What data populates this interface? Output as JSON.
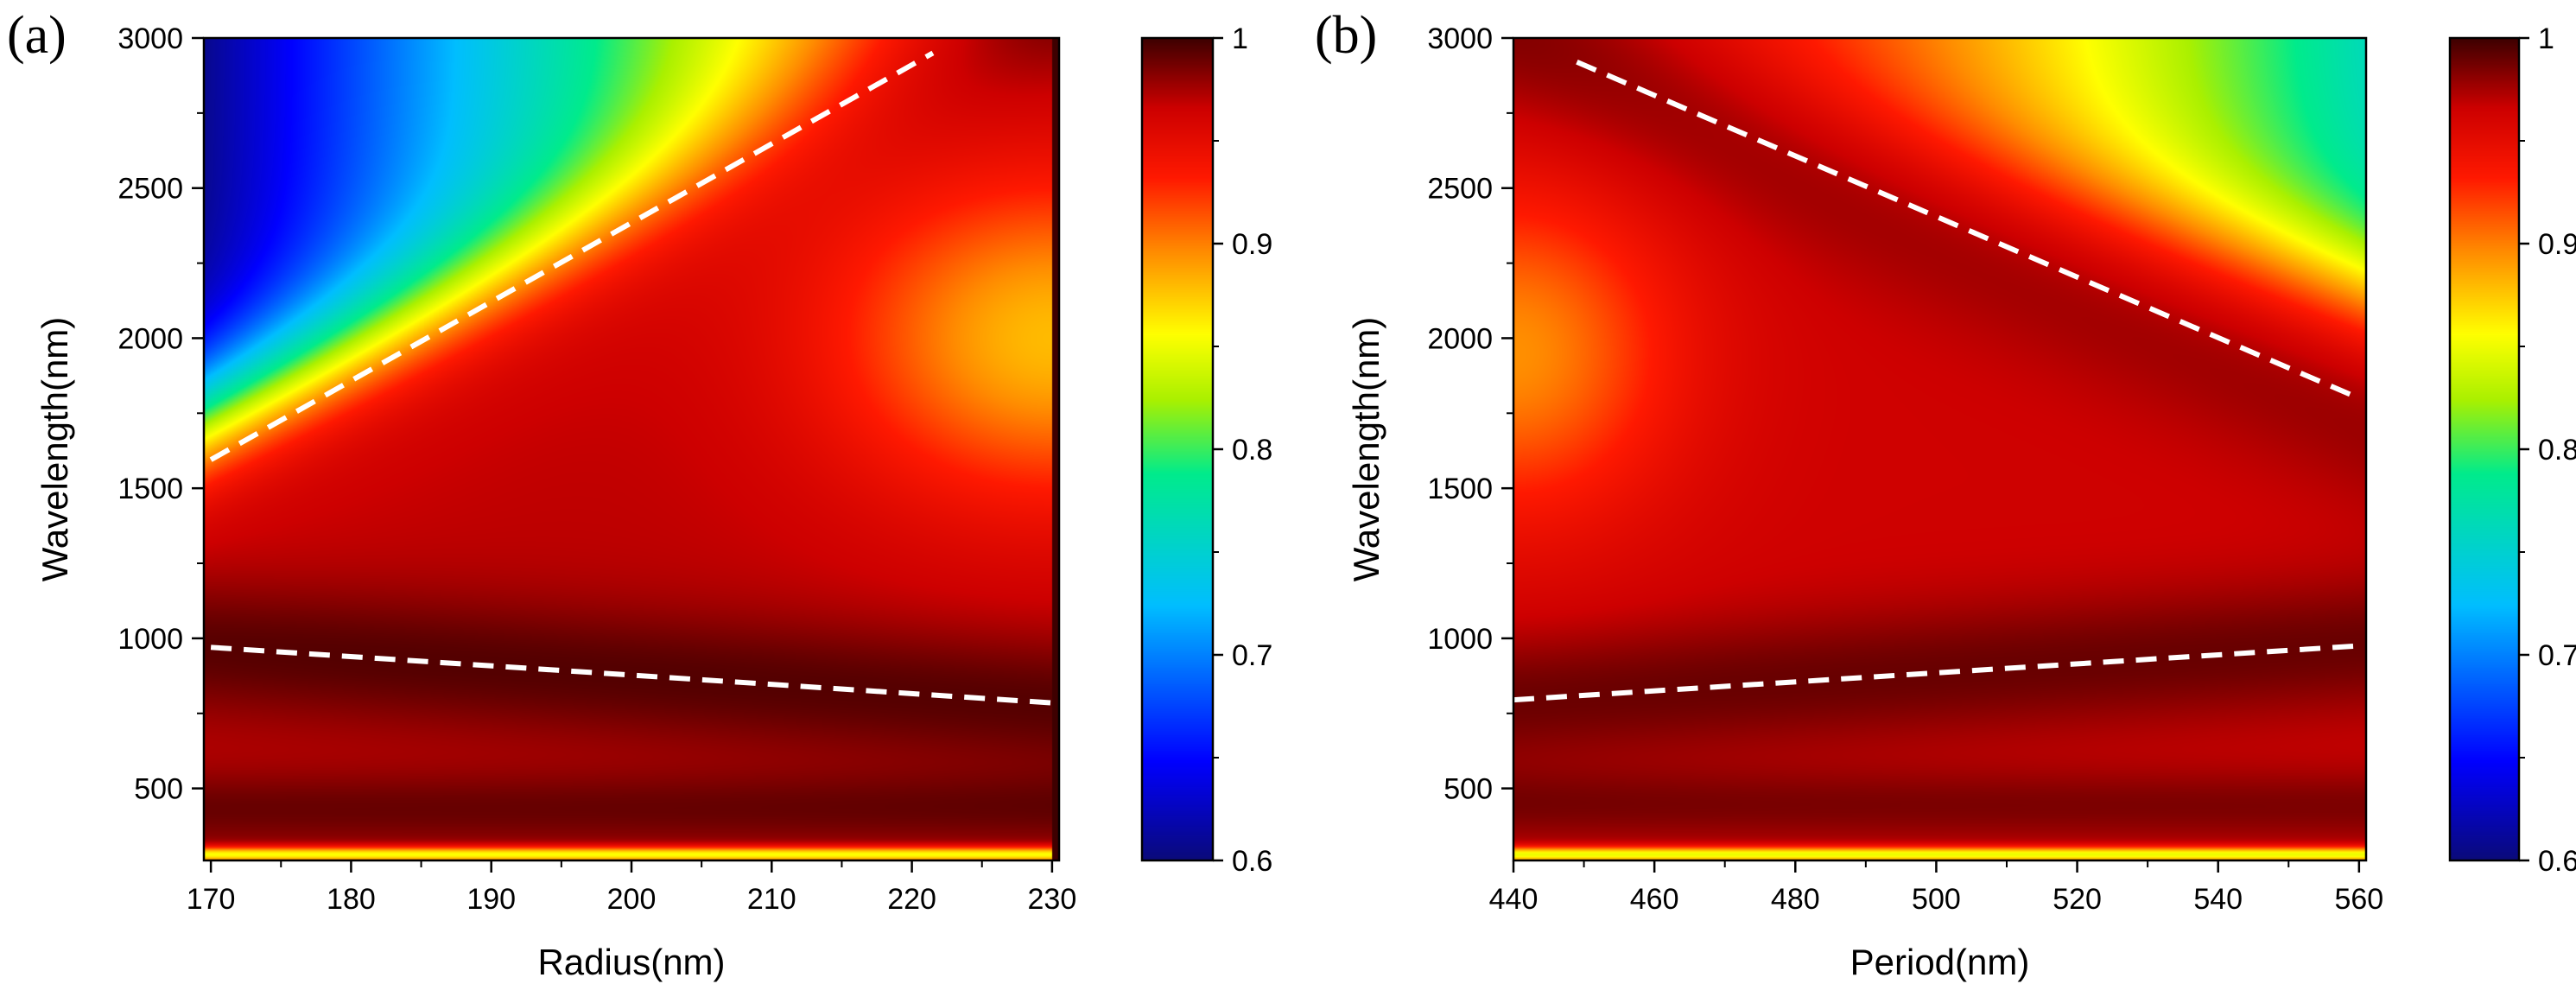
{
  "chart_data": [
    {
      "type": "heatmap",
      "panel_label": "(a)",
      "title": "",
      "xlabel": "Radius(nm)",
      "ylabel": "Wavelength(nm)",
      "xlim": [
        169.5,
        230.5
      ],
      "ylim": [
        260,
        3000
      ],
      "x_ticks": [
        170,
        180,
        190,
        200,
        210,
        220,
        230
      ],
      "y_ticks": [
        500,
        1000,
        1500,
        2000,
        2500,
        3000
      ],
      "colorbar": {
        "range": [
          0.6,
          1.0
        ],
        "ticks": [
          0.6,
          0.7,
          0.8,
          0.9,
          1.0
        ],
        "tick_labels": [
          "0.6",
          "0.7",
          "0.8",
          "0.9",
          "1"
        ]
      },
      "dashed_lines": [
        {
          "points": [
            [
              170,
              1595
            ],
            [
              221.5,
              2950
            ]
          ]
        },
        {
          "points": [
            [
              170,
              970
            ],
            [
              230,
              785
            ]
          ]
        }
      ],
      "value_summary": {
        "min": 0.62,
        "low_corner": "top-left (Radius 170, Wavelength 3000) ~0.62",
        "high_bands": "dark-red maxima along the dashed lines and near 350-500 nm"
      }
    },
    {
      "type": "heatmap",
      "panel_label": "(b)",
      "title": "",
      "xlabel": "Period(nm)",
      "ylabel": "Wavelength(nm)",
      "xlim": [
        440,
        561
      ],
      "ylim": [
        260,
        3000
      ],
      "x_ticks": [
        440,
        460,
        480,
        500,
        520,
        540,
        560
      ],
      "y_ticks": [
        500,
        1000,
        1500,
        2000,
        2500,
        3000
      ],
      "colorbar": {
        "range": [
          0.6,
          1.0
        ],
        "ticks": [
          0.6,
          0.7,
          0.8,
          0.9,
          1.0
        ],
        "tick_labels": [
          "0.6",
          "0.7",
          "0.8",
          "0.9",
          "1"
        ]
      },
      "dashed_lines": [
        {
          "points": [
            [
              449,
              2920
            ],
            [
              560,
              1800
            ]
          ]
        },
        {
          "points": [
            [
              440,
              795
            ],
            [
              560,
              975
            ]
          ]
        }
      ],
      "value_summary": {
        "min": 0.77,
        "low_corner": "top-right (Period 560, Wavelength 3000) ~0.77",
        "high_bands": "dark-red maxima along the dashed lines and near 350-500 nm"
      }
    }
  ]
}
